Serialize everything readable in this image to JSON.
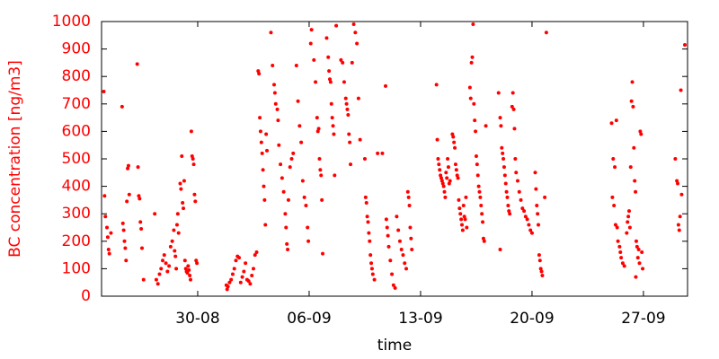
{
  "chart_data": {
    "type": "scatter",
    "color": "#ff0000",
    "xlabel": "time",
    "ylabel": "BC concentration [ng/m3]",
    "xlim": [
      23.96,
      60.77
    ],
    "ylim": [
      0,
      1000
    ],
    "xticks": [
      {
        "value": 30,
        "label": "30-08"
      },
      {
        "value": 37,
        "label": "06-09"
      },
      {
        "value": 44,
        "label": "13-09"
      },
      {
        "value": 51,
        "label": "20-09"
      },
      {
        "value": 58,
        "label": "27-09"
      }
    ],
    "yticks": [
      0,
      100,
      200,
      300,
      400,
      500,
      600,
      700,
      800,
      900,
      1000
    ],
    "x": [
      24.1,
      24.15,
      24.2,
      24.3,
      24.35,
      24.4,
      24.45,
      24.55,
      25.25,
      25.3,
      25.35,
      25.4,
      25.45,
      25.5,
      25.55,
      25.6,
      25.65,
      25.7,
      26.2,
      26.25,
      26.3,
      26.35,
      26.4,
      26.45,
      26.5,
      26.6,
      27.3,
      27.4,
      27.5,
      27.6,
      27.7,
      27.8,
      27.9,
      28.0,
      28.1,
      28.2,
      28.3,
      28.4,
      28.5,
      28.55,
      28.6,
      28.65,
      28.7,
      28.75,
      28.8,
      28.9,
      28.95,
      29.0,
      29.05,
      29.1,
      29.15,
      29.2,
      29.25,
      29.3,
      29.35,
      29.4,
      29.45,
      29.5,
      29.55,
      29.6,
      29.65,
      29.7,
      29.75,
      29.8,
      29.85,
      29.9,
      29.95,
      31.8,
      31.85,
      31.9,
      32.0,
      32.1,
      32.2,
      32.3,
      32.4,
      32.5,
      32.6,
      32.7,
      32.8,
      32.9,
      33.0,
      33.1,
      33.2,
      33.3,
      33.4,
      33.5,
      33.6,
      33.7,
      33.8,
      33.85,
      33.9,
      33.95,
      34.0,
      34.05,
      34.1,
      34.15,
      34.2,
      34.25,
      34.3,
      34.35,
      34.6,
      34.7,
      34.8,
      34.85,
      34.9,
      35.0,
      35.05,
      35.1,
      35.2,
      35.3,
      35.4,
      35.5,
      35.55,
      35.6,
      35.65,
      35.7,
      35.8,
      35.9,
      36.0,
      36.2,
      36.3,
      36.4,
      36.5,
      36.6,
      36.7,
      36.8,
      36.9,
      36.95,
      37.1,
      37.15,
      37.3,
      37.4,
      37.5,
      37.55,
      37.6,
      37.65,
      37.7,
      37.75,
      37.8,
      37.85,
      38.1,
      38.2,
      38.25,
      38.3,
      38.35,
      38.4,
      38.45,
      38.5,
      38.55,
      38.7,
      38.6,
      39.0,
      39.1,
      39.2,
      39.3,
      39.35,
      39.4,
      39.45,
      39.5,
      39.55,
      39.6,
      39.7,
      39.8,
      39.9,
      40.0,
      40.1,
      40.2,
      40.5,
      40.55,
      40.6,
      40.65,
      40.7,
      40.75,
      40.8,
      40.85,
      40.9,
      40.95,
      41.0,
      41.1,
      41.3,
      41.6,
      41.8,
      41.85,
      41.9,
      41.95,
      42.0,
      42.1,
      42.2,
      42.3,
      42.4,
      42.5,
      42.6,
      42.7,
      42.8,
      42.9,
      43.0,
      43.1,
      43.2,
      43.25,
      43.3,
      43.35,
      43.4,
      43.45,
      45.0,
      45.05,
      45.1,
      45.15,
      45.2,
      45.25,
      45.3,
      45.35,
      45.4,
      45.45,
      45.5,
      45.55,
      45.6,
      45.65,
      45.7,
      45.75,
      45.8,
      45.85,
      46.0,
      46.05,
      46.1,
      46.15,
      46.2,
      46.25,
      46.3,
      46.35,
      46.4,
      46.45,
      46.5,
      46.55,
      46.6,
      46.65,
      46.7,
      46.75,
      46.8,
      46.85,
      46.9,
      47.3,
      47.25,
      47.2,
      47.1,
      47.15,
      47.35,
      47.4,
      47.45,
      47.5,
      47.55,
      47.6,
      47.65,
      47.7,
      47.75,
      47.8,
      47.85,
      47.9,
      47.95,
      48.0,
      48.1,
      48.9,
      49.0,
      49.05,
      49.1,
      49.15,
      49.2,
      49.25,
      49.3,
      49.35,
      49.4,
      49.45,
      49.5,
      49.55,
      49.6,
      49.0,
      49.8,
      49.75,
      49.85,
      49.9,
      49.95,
      50.0,
      50.1,
      50.2,
      50.3,
      50.4,
      50.5,
      50.6,
      50.7,
      50.8,
      50.9,
      51.0,
      51.2,
      51.25,
      51.3,
      51.35,
      51.4,
      51.45,
      51.5,
      51.55,
      51.6,
      51.65,
      51.8,
      51.9,
      56.0,
      56.3,
      56.1,
      56.2,
      56.05,
      56.15,
      56.25,
      56.35,
      56.4,
      56.5,
      56.55,
      56.6,
      56.7,
      56.8,
      57.3,
      57.25,
      57.35,
      57.8,
      57.85,
      57.4,
      57.2,
      57.45,
      57.5,
      57.1,
      57.05,
      57.0,
      57.15,
      56.95,
      57.55,
      57.6,
      57.7,
      57.9,
      57.65,
      57.75,
      57.95,
      57.52,
      60.0,
      60.1,
      60.15,
      60.4,
      60.3,
      60.2,
      60.25,
      60.35,
      60.6
    ],
    "values": [
      745,
      365,
      290,
      250,
      215,
      170,
      155,
      230,
      690,
      265,
      240,
      200,
      175,
      130,
      345,
      465,
      475,
      370,
      845,
      470,
      365,
      355,
      270,
      245,
      175,
      60,
      300,
      60,
      45,
      80,
      100,
      130,
      150,
      120,
      90,
      110,
      180,
      200,
      240,
      165,
      145,
      100,
      260,
      300,
      230,
      410,
      390,
      510,
      340,
      320,
      420,
      130,
      100,
      90,
      85,
      110,
      95,
      75,
      60,
      600,
      510,
      500,
      480,
      370,
      345,
      130,
      120,
      40,
      25,
      35,
      50,
      60,
      80,
      100,
      130,
      145,
      140,
      50,
      70,
      90,
      120,
      60,
      55,
      45,
      75,
      100,
      150,
      160,
      820,
      810,
      650,
      600,
      560,
      520,
      460,
      400,
      350,
      260,
      590,
      530,
      960,
      840,
      770,
      740,
      700,
      680,
      640,
      550,
      480,
      430,
      380,
      300,
      250,
      190,
      170,
      350,
      470,
      500,
      520,
      840,
      710,
      620,
      560,
      420,
      360,
      330,
      250,
      200,
      920,
      970,
      860,
      780,
      650,
      600,
      610,
      500,
      460,
      440,
      350,
      155,
      940,
      870,
      820,
      790,
      780,
      700,
      650,
      620,
      590,
      985,
      440,
      860,
      850,
      780,
      720,
      700,
      680,
      660,
      590,
      560,
      480,
      850,
      990,
      960,
      920,
      720,
      570,
      500,
      360,
      340,
      290,
      270,
      230,
      200,
      150,
      120,
      100,
      80,
      60,
      520,
      520,
      765,
      280,
      250,
      220,
      180,
      130,
      80,
      40,
      30,
      290,
      240,
      200,
      170,
      150,
      120,
      100,
      380,
      360,
      330,
      250,
      210,
      170,
      770,
      570,
      500,
      480,
      460,
      440,
      430,
      420,
      410,
      400,
      380,
      360,
      450,
      430,
      500,
      470,
      410,
      420,
      590,
      580,
      560,
      540,
      480,
      460,
      440,
      430,
      350,
      320,
      300,
      280,
      260,
      240,
      330,
      290,
      280,
      360,
      250,
      990,
      870,
      850,
      760,
      720,
      700,
      640,
      600,
      510,
      480,
      440,
      400,
      380,
      360,
      330,
      300,
      270,
      210,
      200,
      620,
      740,
      650,
      620,
      540,
      520,
      500,
      470,
      440,
      410,
      380,
      360,
      330,
      310,
      300,
      170,
      740,
      690,
      680,
      610,
      500,
      450,
      420,
      380,
      350,
      320,
      310,
      290,
      280,
      260,
      240,
      230,
      450,
      390,
      330,
      300,
      260,
      150,
      130,
      100,
      90,
      75,
      360,
      960,
      630,
      640,
      500,
      470,
      360,
      330,
      260,
      250,
      200,
      180,
      160,
      140,
      120,
      110,
      780,
      710,
      690,
      600,
      590,
      540,
      470,
      420,
      380,
      310,
      290,
      270,
      250,
      230,
      200,
      180,
      170,
      160,
      140,
      120,
      100,
      70,
      500,
      420,
      410,
      370,
      290,
      260,
      240,
      750,
      915
    ]
  }
}
